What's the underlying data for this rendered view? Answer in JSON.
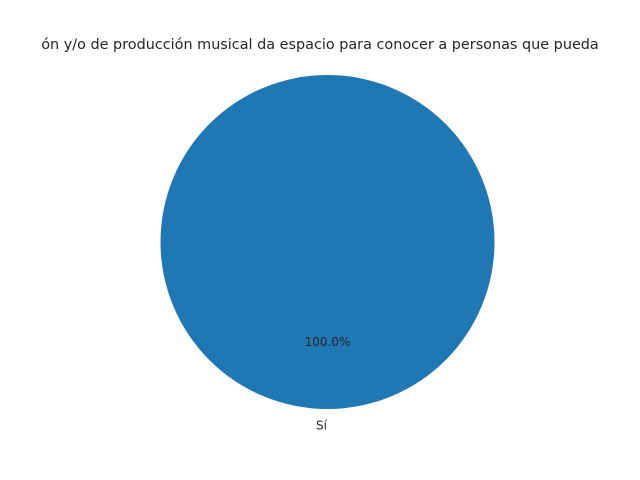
{
  "chart_data": {
    "type": "pie",
    "title": "ón y/o de producción musical da espacio para conocer a personas que pueda",
    "slices": [
      {
        "label": "Sí",
        "value": 100.0,
        "pct_label": "100.0%",
        "color": "#1f77b4"
      }
    ]
  }
}
